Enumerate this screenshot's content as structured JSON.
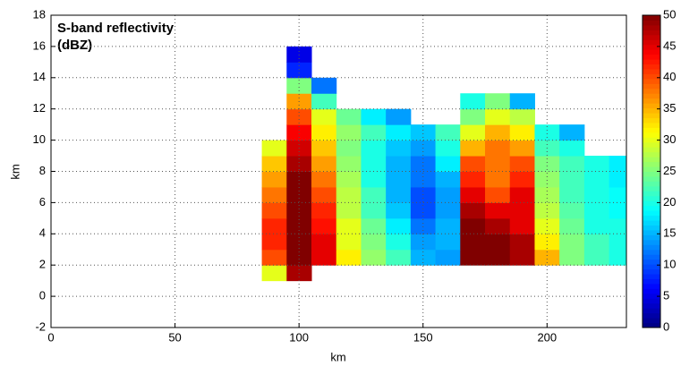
{
  "chart_data": {
    "type": "heatmap",
    "title": [
      "S-band reflectivity",
      "(dBZ)"
    ],
    "xlabel": "km",
    "ylabel": "km",
    "xlim": [
      0,
      232
    ],
    "xticks": [
      0,
      50,
      100,
      150,
      200
    ],
    "ylim": [
      -2,
      18
    ],
    "yticks": [
      -2,
      0,
      2,
      4,
      6,
      8,
      10,
      12,
      14,
      16,
      18
    ],
    "grid": true,
    "colormap": "jet",
    "clim": [
      0,
      50
    ],
    "cticks": [
      0,
      5,
      10,
      15,
      20,
      25,
      30,
      35,
      40,
      45,
      50
    ],
    "x_edges": [
      85,
      95,
      105,
      115,
      125,
      135,
      145,
      155,
      165,
      175,
      185,
      195,
      205,
      215,
      225,
      232
    ],
    "y_edges": [
      1,
      2,
      3,
      4,
      5,
      6,
      7,
      8,
      9,
      10,
      11,
      12,
      13,
      14,
      15,
      16
    ],
    "values": [
      [
        30,
        48,
        null,
        null,
        null,
        null,
        null,
        null,
        null,
        null,
        null,
        null,
        null,
        null,
        null
      ],
      [
        40,
        50,
        45,
        32,
        26,
        22,
        15,
        14,
        50,
        50,
        48,
        35,
        25,
        22,
        20
      ],
      [
        42,
        50,
        45,
        30,
        25,
        20,
        14,
        15,
        50,
        50,
        48,
        32,
        25,
        22,
        20
      ],
      [
        42,
        50,
        43,
        30,
        24,
        18,
        12,
        15,
        50,
        48,
        45,
        30,
        24,
        20,
        20
      ],
      [
        40,
        50,
        42,
        28,
        22,
        16,
        10,
        14,
        48,
        45,
        45,
        28,
        23,
        20,
        19
      ],
      [
        38,
        50,
        40,
        28,
        22,
        15,
        10,
        14,
        45,
        40,
        45,
        27,
        22,
        20,
        19
      ],
      [
        36,
        50,
        38,
        27,
        20,
        15,
        12,
        15,
        42,
        38,
        42,
        26,
        22,
        20,
        18
      ],
      [
        34,
        48,
        36,
        26,
        20,
        15,
        12,
        18,
        40,
        38,
        40,
        25,
        22,
        20,
        18
      ],
      [
        30,
        46,
        34,
        25,
        20,
        16,
        14,
        20,
        35,
        38,
        36,
        22,
        20,
        null,
        null
      ],
      [
        null,
        44,
        32,
        26,
        22,
        18,
        16,
        22,
        30,
        35,
        32,
        20,
        15,
        null,
        null
      ],
      [
        null,
        40,
        30,
        24,
        18,
        14,
        null,
        null,
        25,
        30,
        28,
        null,
        null,
        null,
        null
      ],
      [
        null,
        36,
        22,
        null,
        null,
        null,
        null,
        null,
        20,
        25,
        15,
        null,
        null,
        null,
        null
      ],
      [
        null,
        25,
        12,
        null,
        null,
        null,
        null,
        null,
        null,
        null,
        null,
        null,
        null,
        null,
        null
      ],
      [
        null,
        8,
        null,
        null,
        null,
        null,
        null,
        null,
        null,
        null,
        null,
        null,
        null,
        null,
        null
      ],
      [
        null,
        5,
        null,
        null,
        null,
        null,
        null,
        null,
        null,
        null,
        null,
        null,
        null,
        null,
        null
      ]
    ]
  }
}
